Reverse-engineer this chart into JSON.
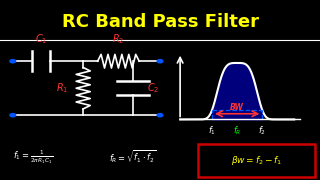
{
  "title": "RC Band Pass Filter",
  "title_color": "#FFFF00",
  "bg_color": "#000000",
  "fig_width": 3.2,
  "fig_height": 1.8,
  "dpi": 100,
  "c1_color": "#FF3333",
  "r2_color": "#FF3333",
  "r1_color": "#FF3333",
  "c2_color": "#FF3333",
  "node_color": "#0055FF",
  "formula1_color": "#FFFFFF",
  "formula2_color": "#FFFFFF",
  "formula3_color": "#FFFF00",
  "formula3_box_color": "#CC0000",
  "bw_color": "#FF3333",
  "curve_color": "#FFFFFF",
  "fill_color": "#00008B",
  "dashed_color": "#0055FF",
  "fr_label_color": "#00FF00",
  "freq_label_color": "#FFFFFF"
}
